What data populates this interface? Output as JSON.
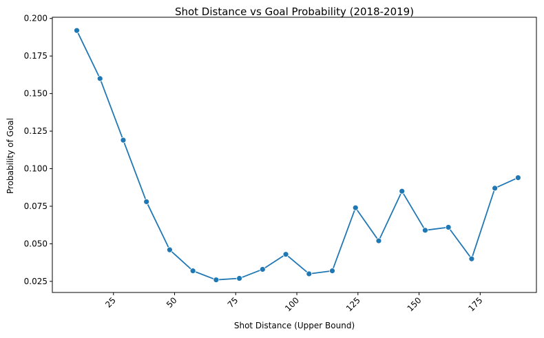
{
  "chart_data": {
    "type": "line",
    "title": "Shot Distance vs Goal Probability (2018-2019)",
    "xlabel": "Shot Distance (Upper Bound)",
    "ylabel": "Probability of Goal",
    "xlim": [
      0,
      198
    ],
    "ylim": [
      0.0176,
      0.2008
    ],
    "xticks": [
      25,
      50,
      75,
      100,
      125,
      150,
      175
    ],
    "xtick_labels": [
      "25",
      "50",
      "75",
      "100",
      "125",
      "150",
      "175"
    ],
    "yticks": [
      0.025,
      0.05,
      0.075,
      0.1,
      0.125,
      0.15,
      0.175,
      0.2
    ],
    "ytick_labels": [
      "0.025",
      "0.050",
      "0.075",
      "0.100",
      "0.125",
      "0.150",
      "0.175",
      "0.200"
    ],
    "xtick_rotation": 45,
    "grid": false,
    "legend": "none",
    "color": "#1f77b4",
    "marker": "circle",
    "series": [
      {
        "x": [
          10,
          19.5,
          29,
          38.5,
          48,
          57.5,
          67,
          76.5,
          86,
          95.5,
          105,
          114.5,
          124,
          133.5,
          143,
          152.5,
          162,
          171.5,
          181,
          190.5
        ],
        "values": [
          0.192,
          0.16,
          0.119,
          0.078,
          0.046,
          0.032,
          0.026,
          0.027,
          0.033,
          0.043,
          0.03,
          0.032,
          0.074,
          0.052,
          0.085,
          0.059,
          0.061,
          0.04,
          0.087,
          0.094
        ]
      }
    ]
  }
}
